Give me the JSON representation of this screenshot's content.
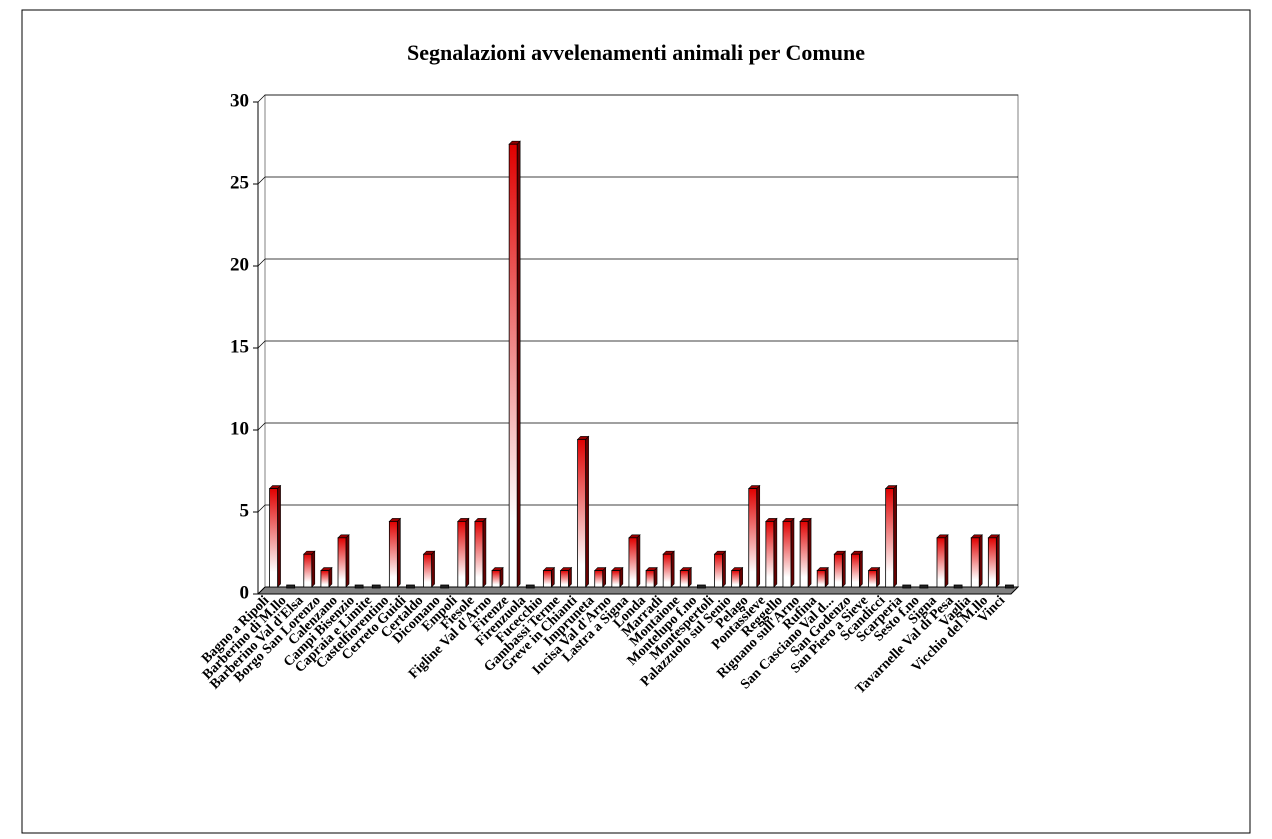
{
  "chart_data": {
    "type": "bar",
    "title": "Segnalazioni avvelenamenti animali per Comune",
    "categories": [
      "Bagno a Ripoli",
      "Barberino di M.llo",
      "Barberino Val d'Elsa",
      "Borgo San Lorenzo",
      "Calenzano",
      "Campi Bisenzio",
      "Capraia e Limite",
      "Castelfiorentino",
      "Cerreto Guidi",
      "Certaldo",
      "Dicomano",
      "Empoli",
      "Fiesole",
      "Figline Val d'Arno",
      "Firenze",
      "Firenzuola",
      "Fucecchio",
      "Gambassi Terme",
      "Greve in Chianti",
      "Impruneta",
      "Incisa Val d'Arno",
      "Lastra a Signa",
      "Londa",
      "Marradi",
      "Montaione",
      "Montelupo f.no",
      "Montespertoli",
      "Palazzuolo sul Senio",
      "Pelago",
      "Pontassieve",
      "Reggello",
      "Rignano sull'Arno",
      "Rufina",
      "San Casciano Val d...",
      "San Godenzo",
      "San Piero a Sieve",
      "Scandicci",
      "Scarperia",
      "Sesto f.no",
      "Signa",
      "Tavarnelle Val di Pesa",
      "Vaglia",
      "Vicchio del M.llo",
      "Vinci"
    ],
    "values": [
      6,
      0,
      2,
      1,
      3,
      0,
      0,
      4,
      0,
      2,
      0,
      4,
      4,
      1,
      27,
      0,
      1,
      1,
      9,
      1,
      1,
      3,
      1,
      2,
      1,
      0,
      2,
      1,
      6,
      4,
      4,
      4,
      1,
      2,
      2,
      1,
      6,
      0,
      0,
      3,
      0,
      3,
      3,
      0
    ],
    "color": "#e00000",
    "ylim": [
      0,
      30
    ],
    "yticks": [
      0,
      5,
      10,
      15,
      20,
      25,
      30
    ],
    "grid": true
  }
}
